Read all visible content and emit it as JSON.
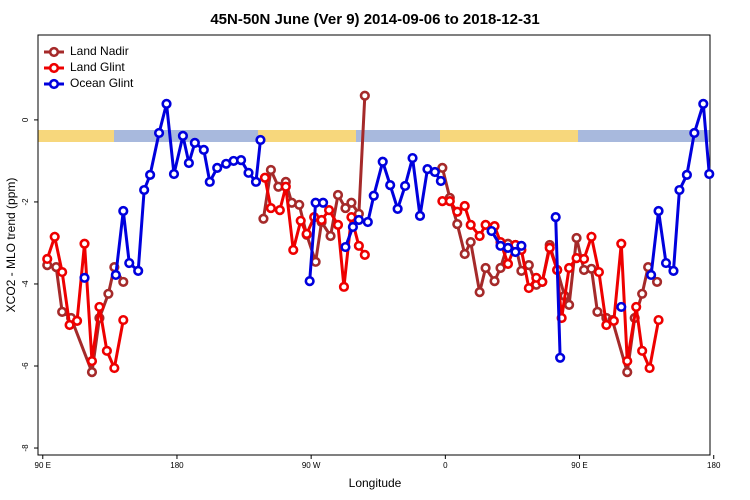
{
  "chart_data": {
    "type": "line",
    "title": "45N-50N June (Ver 9)   2014-09-06 to 2018-12-31",
    "x_label": "Longitude",
    "y_label": "XCO2 - MLO trend (ppm)",
    "xlim": [
      86.8,
      537.5
    ],
    "ylim": [
      -8.17,
      2.07
    ],
    "xticks": [
      {
        "value": 90,
        "label": "90 E"
      },
      {
        "value": 180,
        "label": "180"
      },
      {
        "value": 270,
        "label": "90 W"
      },
      {
        "value": 360,
        "label": "0"
      },
      {
        "value": 450,
        "label": "90 E"
      },
      {
        "value": 540,
        "label": "180"
      }
    ],
    "yticks": [
      0,
      -2,
      -4,
      -6,
      -8
    ],
    "legend": "top-left",
    "series": [
      {
        "name": "Land Nadir",
        "color": "#a52a2a",
        "x": [
          93,
          99,
          103,
          109,
          123,
          128,
          134,
          138,
          144,
          null,
          238,
          243,
          248,
          253,
          257,
          262,
          267,
          273,
          277,
          283,
          288,
          293,
          297,
          302,
          306,
          null,
          358,
          363,
          368,
          373,
          377,
          383,
          387,
          393,
          397,
          402,
          407,
          411,
          416,
          421,
          425,
          430,
          435,
          440,
          443,
          448,
          453,
          458,
          462,
          468,
          472,
          482,
          487,
          492,
          496,
          502
        ],
        "values": [
          -3.54,
          -3.59,
          -4.68,
          -4.83,
          -6.15,
          -4.83,
          -4.24,
          -3.59,
          -3.95,
          null,
          -2.41,
          -1.22,
          -1.63,
          -1.51,
          -2.02,
          -2.07,
          -2.8,
          -3.46,
          -2.49,
          -2.83,
          -1.83,
          -2.15,
          -2.02,
          -2.29,
          0.59,
          null,
          -1.17,
          -1.9,
          -2.54,
          -3.27,
          -2.98,
          -4.2,
          -3.61,
          -3.93,
          -3.61,
          -3.02,
          -3.05,
          -3.68,
          -3.54,
          -4.02,
          -3.95,
          -3.05,
          -3.66,
          -4.29,
          -4.51,
          -2.88,
          -3.66,
          -3.63,
          -4.68,
          -4.83,
          -4.88,
          -6.15,
          -4.83,
          -4.24,
          -3.59,
          -3.95
        ]
      },
      {
        "name": "Land Glint",
        "color": "#ee0000",
        "x": [
          93,
          98,
          103,
          108,
          113,
          118,
          123,
          128,
          133,
          138,
          144,
          null,
          239,
          243,
          249,
          253,
          258,
          263,
          267,
          272,
          277,
          282,
          288,
          292,
          297,
          302,
          306,
          null,
          358,
          363,
          368,
          373,
          377,
          383,
          387,
          393,
          397,
          402,
          407,
          411,
          416,
          421,
          425,
          430,
          435,
          438,
          443,
          448,
          453,
          458,
          463,
          468,
          473,
          478,
          482,
          488,
          492,
          497,
          503
        ],
        "values": [
          -3.39,
          -2.85,
          -3.71,
          -5.0,
          -4.9,
          -3.02,
          -5.88,
          -4.56,
          -5.63,
          -6.05,
          -4.88,
          null,
          -1.41,
          -2.15,
          -2.2,
          -1.63,
          -3.17,
          -2.46,
          -2.78,
          -2.37,
          -2.44,
          -2.2,
          -2.56,
          -4.07,
          -2.37,
          -3.07,
          -3.29,
          null,
          -1.98,
          -1.98,
          -2.24,
          -2.1,
          -2.56,
          -2.83,
          -2.56,
          -2.59,
          -2.98,
          -3.51,
          -3.05,
          -3.17,
          -4.1,
          -3.85,
          -3.95,
          -3.12,
          -3.66,
          -4.83,
          -3.61,
          -3.37,
          -3.39,
          -2.85,
          -3.71,
          -5.0,
          -4.9,
          -3.02,
          -5.88,
          -4.56,
          -5.63,
          -6.05,
          -4.88
        ]
      },
      {
        "name": "Ocean Glint",
        "color": "#0000dd",
        "x": [
          118,
          null,
          139,
          144,
          148,
          154,
          158,
          162,
          168,
          173,
          178,
          184,
          188,
          192,
          198,
          202,
          207,
          213,
          218,
          223,
          228,
          233,
          236,
          null,
          269,
          273,
          278,
          null,
          293,
          298,
          302,
          308,
          312,
          318,
          323,
          328,
          333,
          338,
          343,
          348,
          353,
          357,
          null,
          391,
          397,
          402,
          407,
          411,
          null,
          434,
          437,
          null,
          478,
          null,
          498,
          503,
          508,
          513,
          517,
          522,
          527,
          533,
          537
        ],
        "values": [
          -3.85,
          null,
          -3.78,
          -2.22,
          -3.49,
          -3.68,
          -1.71,
          -1.34,
          -0.32,
          0.39,
          -1.32,
          -0.39,
          -1.05,
          -0.56,
          -0.73,
          -1.51,
          -1.17,
          -1.07,
          -1.0,
          -0.98,
          -1.29,
          -1.51,
          -0.49,
          null,
          -3.93,
          -2.02,
          -2.02,
          null,
          -3.1,
          -2.61,
          -2.44,
          -2.49,
          -1.85,
          -1.02,
          -1.59,
          -2.17,
          -1.61,
          -0.93,
          -2.34,
          -1.2,
          -1.27,
          -1.49,
          null,
          -2.71,
          -3.07,
          -3.12,
          -3.22,
          -3.07,
          null,
          -2.37,
          -5.8,
          null,
          -4.56,
          null,
          -3.78,
          -2.22,
          -3.49,
          -3.68,
          -1.71,
          -1.34,
          -0.32,
          0.39,
          -1.32
        ]
      }
    ]
  }
}
